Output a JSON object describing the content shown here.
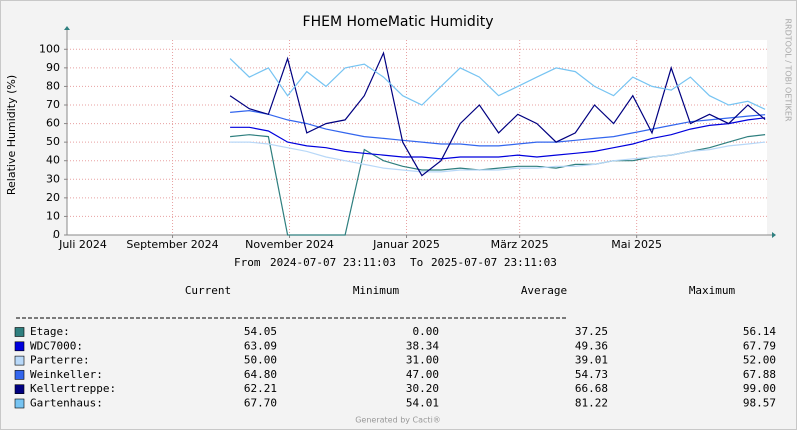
{
  "chart_data": {
    "type": "line",
    "title": "FHEM HomeMatic Humidity",
    "y_label": "Relative Humidity (%)",
    "side_note": "RRDTOOL / TOBI OETIKER",
    "from_label": "From",
    "to_label": "To",
    "xlim": [
      "2024-07-07 23:11:03",
      "2025-07-07 23:11:03"
    ],
    "xticks": [
      {
        "value": "2024-07-01",
        "label": "Juli 2024"
      },
      {
        "value": "2024-09-01",
        "label": "September 2024"
      },
      {
        "value": "2024-11-01",
        "label": "November 2024"
      },
      {
        "value": "2025-01-01",
        "label": "Januar 2025"
      },
      {
        "value": "2025-03-01",
        "label": "März 2025"
      },
      {
        "value": "2025-05-01",
        "label": "Mai 2025"
      }
    ],
    "ylim": [
      0,
      105
    ],
    "yticks": [
      0,
      10,
      20,
      30,
      40,
      50,
      60,
      70,
      80,
      90,
      100
    ],
    "grid": true,
    "x": [
      "2024-10-01",
      "2024-10-11",
      "2024-10-21",
      "2024-10-31",
      "2024-11-10",
      "2024-11-20",
      "2024-11-30",
      "2024-12-10",
      "2024-12-20",
      "2024-12-30",
      "2025-01-09",
      "2025-01-19",
      "2025-01-29",
      "2025-02-08",
      "2025-02-18",
      "2025-02-28",
      "2025-03-10",
      "2025-03-20",
      "2025-03-30",
      "2025-04-09",
      "2025-04-19",
      "2025-04-29",
      "2025-05-09",
      "2025-05-19",
      "2025-05-29",
      "2025-06-08",
      "2025-06-18",
      "2025-06-28",
      "2025-07-07"
    ],
    "series": [
      {
        "name": "Etage:",
        "color": "#2f7f7f",
        "values": [
          53,
          54,
          53,
          0,
          0,
          0,
          0,
          46,
          40,
          37,
          35,
          35,
          36,
          35,
          36,
          37,
          37,
          36,
          38,
          38,
          40,
          40,
          42,
          43,
          45,
          47,
          50,
          53,
          54.05
        ]
      },
      {
        "name": "WDC7000:",
        "color": "#0000dd",
        "values": [
          58,
          58,
          56,
          50,
          48,
          47,
          45,
          44,
          43,
          42,
          42,
          41,
          42,
          42,
          42,
          43,
          42,
          43,
          44,
          45,
          47,
          49,
          52,
          54,
          57,
          59,
          60,
          62,
          63.09
        ]
      },
      {
        "name": "Parterre:",
        "color": "#b8d8f8",
        "values": [
          50,
          50,
          49,
          47,
          45,
          42,
          40,
          38,
          36,
          35,
          34,
          34,
          35,
          35,
          35,
          36,
          36,
          37,
          37,
          38,
          40,
          41,
          42,
          43,
          45,
          46,
          48,
          49,
          50
        ]
      },
      {
        "name": "Weinkeller:",
        "color": "#3366ee",
        "values": [
          66,
          67,
          65,
          62,
          60,
          57,
          55,
          53,
          52,
          51,
          50,
          49,
          49,
          48,
          48,
          49,
          50,
          50,
          51,
          52,
          53,
          55,
          57,
          59,
          61,
          62,
          63,
          64,
          64.8
        ]
      },
      {
        "name": "Kellertreppe:",
        "color": "#000080",
        "values": [
          75,
          68,
          65,
          95,
          55,
          60,
          62,
          75,
          98,
          50,
          32,
          40,
          60,
          70,
          55,
          65,
          60,
          50,
          55,
          70,
          60,
          75,
          55,
          90,
          60,
          65,
          60,
          70,
          62.21
        ]
      },
      {
        "name": "Gartenhaus:",
        "color": "#77c4f2",
        "values": [
          95,
          85,
          90,
          75,
          88,
          80,
          90,
          92,
          85,
          75,
          70,
          80,
          90,
          85,
          75,
          80,
          85,
          90,
          88,
          80,
          75,
          85,
          80,
          78,
          85,
          75,
          70,
          72,
          67.7
        ]
      }
    ],
    "stat_headers": [
      "Current",
      "Minimum",
      "Average",
      "Maximum"
    ],
    "stats": [
      [
        "54.05",
        "0.00",
        "37.25",
        "56.14"
      ],
      [
        "63.09",
        "38.34",
        "49.36",
        "67.79"
      ],
      [
        "50.00",
        "31.00",
        "39.01",
        "52.00"
      ],
      [
        "64.80",
        "47.00",
        "54.73",
        "67.88"
      ],
      [
        "62.21",
        "30.20",
        "66.68",
        "99.00"
      ],
      [
        "67.70",
        "54.01",
        "81.22",
        "98.57"
      ]
    ],
    "credit": "Generated by Cacti®"
  }
}
